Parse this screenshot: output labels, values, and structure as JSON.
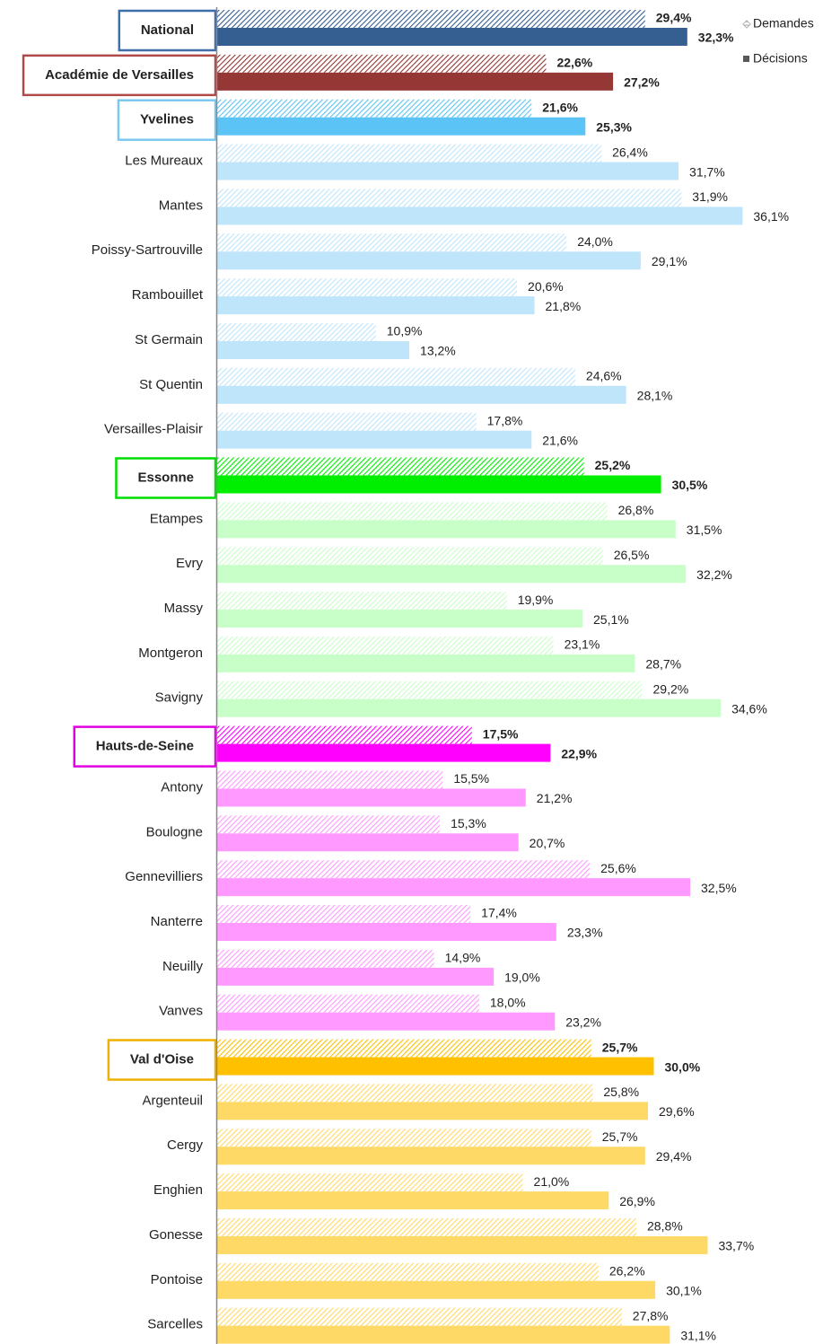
{
  "chart_data": {
    "type": "bar",
    "orientation": "horizontal",
    "legend": "upper right",
    "xlim": [
      0,
      37
    ],
    "categories": [
      "National",
      "Académie  de Versailles",
      "Yvelines",
      "Les Mureaux",
      "Mantes",
      "Poissy-Sartrouville",
      "Rambouillet",
      "St Germain",
      "St Quentin",
      "Versailles-Plaisir",
      "Essonne",
      "Etampes",
      "Evry",
      "Massy",
      "Montgeron",
      "Savigny",
      "Hauts-de-Seine",
      "Antony",
      "Boulogne",
      "Gennevilliers",
      "Nanterre",
      "Neuilly",
      "Vanves",
      "Val d'Oise",
      "Argenteuil",
      "Cergy",
      "Enghien",
      "Gonesse",
      "Pontoise",
      "Sarcelles"
    ],
    "category_colors": [
      "#365f91",
      "#953735",
      "#5bc3f5",
      "#bfe5fb",
      "#bfe5fb",
      "#bfe5fb",
      "#bfe5fb",
      "#bfe5fb",
      "#bfe5fb",
      "#bfe5fb",
      "#00ee00",
      "#c8ffc8",
      "#c8ffc8",
      "#c8ffc8",
      "#c8ffc8",
      "#c8ffc8",
      "#ff00ff",
      "#ff99ff",
      "#ff99ff",
      "#ff99ff",
      "#ff99ff",
      "#ff99ff",
      "#ff99ff",
      "#ffc000",
      "#ffd966",
      "#ffd966",
      "#ffd966",
      "#ffd966",
      "#ffd966",
      "#ffd966"
    ],
    "category_box_colors": [
      "#3f6fa8",
      "#b04a48",
      "#7cc8f0",
      null,
      null,
      null,
      null,
      null,
      null,
      null,
      "#00dd00",
      null,
      null,
      null,
      null,
      null,
      "#e000e0",
      null,
      null,
      null,
      null,
      null,
      null,
      "#f0b000",
      null,
      null,
      null,
      null,
      null,
      null
    ],
    "series": [
      {
        "name": "Demandes",
        "color": "#a6a6a6",
        "pattern": "hatched",
        "values": [
          29.4,
          22.6,
          21.6,
          26.4,
          31.9,
          24.0,
          20.6,
          10.9,
          24.6,
          17.8,
          25.2,
          26.8,
          26.5,
          19.9,
          23.1,
          29.2,
          17.5,
          15.5,
          15.3,
          25.6,
          17.4,
          14.9,
          18.0,
          25.7,
          25.8,
          25.7,
          21.0,
          28.8,
          26.2,
          27.8
        ],
        "value_labels": [
          "29,4%",
          "22,6%",
          "21,6%",
          "26,4%",
          "31,9%",
          "24,0%",
          "20,6%",
          "10,9%",
          "24,6%",
          "17,8%",
          "25,2%",
          "26,8%",
          "26,5%",
          "19,9%",
          "23,1%",
          "29,2%",
          "17,5%",
          "15,5%",
          "15,3%",
          "25,6%",
          "17,4%",
          "14,9%",
          "18,0%",
          "25,7%",
          "25,8%",
          "25,7%",
          "21,0%",
          "28,8%",
          "26,2%",
          "27,8%"
        ]
      },
      {
        "name": "Décisions",
        "color": "#595959",
        "pattern": "solid",
        "values": [
          32.3,
          27.2,
          25.3,
          31.7,
          36.1,
          29.1,
          21.8,
          13.2,
          28.1,
          21.6,
          30.5,
          31.5,
          32.2,
          25.1,
          28.7,
          34.6,
          22.9,
          21.2,
          20.7,
          32.5,
          23.3,
          19.0,
          23.2,
          30.0,
          29.6,
          29.4,
          26.9,
          33.7,
          30.1,
          31.1
        ],
        "value_labels": [
          "32,3%",
          "27,2%",
          "25,3%",
          "31,7%",
          "36,1%",
          "29,1%",
          "21,8%",
          "13,2%",
          "28,1%",
          "21,6%",
          "30,5%",
          "31,5%",
          "32,2%",
          "25,1%",
          "28,7%",
          "34,6%",
          "22,9%",
          "21,2%",
          "20,7%",
          "32,5%",
          "23,3%",
          "19,0%",
          "23,2%",
          "30,0%",
          "29,6%",
          "29,4%",
          "26,9%",
          "33,7%",
          "30,1%",
          "31,1%"
        ]
      }
    ]
  }
}
